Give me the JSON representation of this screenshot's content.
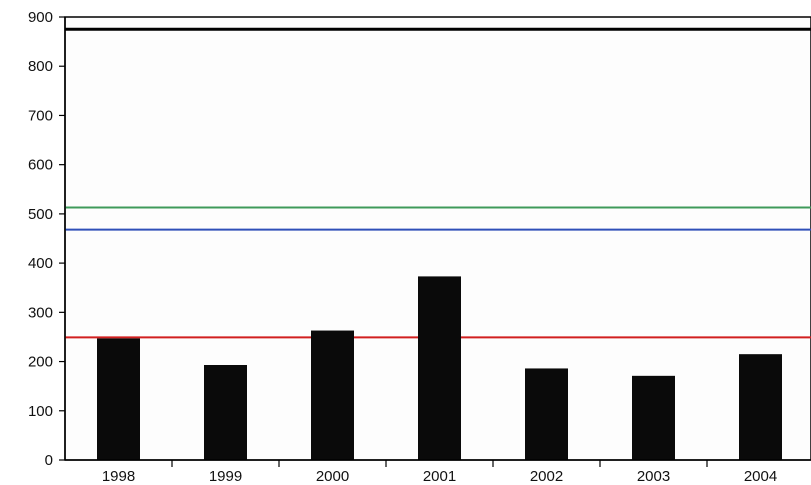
{
  "chart_data": {
    "type": "bar",
    "title": "",
    "xlabel": "",
    "ylabel": "",
    "categories": [
      "1998",
      "1999",
      "2000",
      "2001",
      "2002",
      "2003",
      "2004"
    ],
    "values": [
      247,
      193,
      263,
      373,
      186,
      171,
      215
    ],
    "ylim": [
      0,
      900
    ],
    "yticks": [
      0,
      100,
      200,
      300,
      400,
      500,
      600,
      700,
      800,
      900
    ],
    "grid": false,
    "legend": "none",
    "bar_color": "#0a0a0a",
    "reference_lines": [
      {
        "value": 875,
        "color": "#000000"
      },
      {
        "value": 513,
        "color": "#3f9a5a"
      },
      {
        "value": 468,
        "color": "#2f4fb8"
      },
      {
        "value": 249,
        "color": "#d11f1f"
      }
    ]
  }
}
